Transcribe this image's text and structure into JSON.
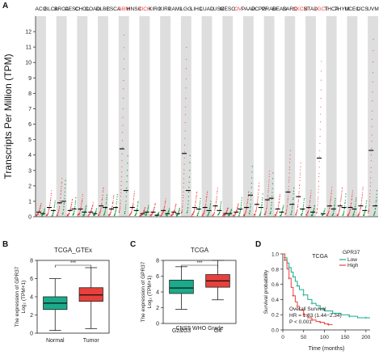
{
  "panels": {
    "a": "A",
    "b": "B",
    "c": "C",
    "d": "D"
  },
  "chart_data": [
    {
      "id": "A",
      "type": "scatter",
      "ylabel": "Transcripts Per Million (TPM)",
      "ylim": [
        0,
        13
      ],
      "yticks": [
        0,
        1,
        2,
        3,
        4,
        5,
        6,
        7,
        8,
        9,
        10,
        11,
        12
      ],
      "grid": false,
      "tumor_color": "#e8403c",
      "normal_color": "#1a9c45",
      "highlight_color": "#e8403c",
      "categories": [
        "ACC",
        "BLCA",
        "BRCA",
        "CESC",
        "CHOL",
        "COAD",
        "DLBC",
        "ESCA",
        "GBM",
        "HNSC",
        "KICH",
        "KIRC",
        "KIRP",
        "LAML",
        "LGG",
        "LIHC",
        "LUAD",
        "LUSC",
        "MESO",
        "OV",
        "PAAD",
        "PCPG",
        "PRAD",
        "READ",
        "SARC",
        "SKCM",
        "STAD",
        "TGCT",
        "THCA",
        "THYM",
        "UCEC",
        "UCS",
        "UVM"
      ],
      "highlighted": [
        "GBM",
        "KICH",
        "OV",
        "SKCM",
        "TGCT"
      ],
      "tumor_median": [
        0.3,
        0.6,
        0.9,
        0.4,
        0.5,
        0.3,
        0.7,
        0.5,
        4.4,
        0.6,
        0.2,
        0.3,
        0.4,
        0.3,
        4.1,
        0.6,
        0.6,
        0.7,
        0.2,
        0.3,
        0.6,
        0.8,
        1.1,
        0.5,
        1.6,
        1.3,
        0.6,
        3.8,
        0.7,
        0.7,
        0.6,
        0.7,
        4.3
      ],
      "normal_median": [
        0.2,
        0.4,
        1.0,
        0.5,
        0.3,
        0.2,
        0.6,
        0.6,
        1.7,
        0.4,
        0.3,
        0.1,
        0.2,
        0.2,
        1.7,
        0.5,
        0.4,
        0.4,
        0.2,
        0.5,
        1.4,
        0.6,
        1.2,
        0.3,
        0.8,
        0.5,
        0.3,
        0.2,
        0.5,
        0.6,
        0.5,
        0.4,
        0.7
      ]
    },
    {
      "id": "B",
      "type": "boxplot",
      "title": "TCGA_GTEx",
      "ylabel": [
        "The expression of GPR37",
        "Log₂ (TPM+1)"
      ],
      "categories": [
        "Normal",
        "Tumor"
      ],
      "ylim": [
        0,
        8
      ],
      "yticks": [
        0,
        2,
        4,
        6,
        8
      ],
      "significance": "***",
      "boxes": [
        {
          "name": "Normal",
          "color": "#1aab8a",
          "whisker_low": 0.3,
          "q1": 2.6,
          "median": 3.3,
          "q3": 4.0,
          "whisker_high": 6.0
        },
        {
          "name": "Tumor",
          "color": "#e8403c",
          "whisker_low": 0.5,
          "q1": 3.5,
          "median": 4.2,
          "q3": 5.0,
          "whisker_high": 7.2
        }
      ]
    },
    {
      "id": "C",
      "type": "boxplot",
      "title": "TCGA",
      "ylabel": [
        "The expression of GPR37",
        "Log₂ (TPM+1)"
      ],
      "xlabel": "CNS5 WHO Grade",
      "categories": [
        "G2&G3",
        "G4"
      ],
      "ylim": [
        0,
        8
      ],
      "yticks": [
        0,
        2,
        4,
        6,
        8
      ],
      "significance": "***",
      "boxes": [
        {
          "name": "G2&G3",
          "color": "#1aab8a",
          "whisker_low": 1.8,
          "q1": 3.8,
          "median": 4.5,
          "q3": 5.5,
          "whisker_high": 7.2
        },
        {
          "name": "G4",
          "color": "#e8403c",
          "whisker_low": 3.0,
          "q1": 4.6,
          "median": 5.4,
          "q3": 6.2,
          "whisker_high": 8.0
        }
      ]
    },
    {
      "id": "D",
      "type": "line",
      "title": "TCGA",
      "xlabel": "Time (months)",
      "ylabel": "Survival probability",
      "xlim": [
        0,
        210
      ],
      "ylim": [
        0,
        1.0
      ],
      "xticks": [
        0,
        50,
        100,
        150,
        200
      ],
      "yticks": [
        0.0,
        0.2,
        0.4,
        0.6,
        0.8,
        1.0
      ],
      "legend": {
        "title": "GPR37",
        "position": "top-right"
      },
      "annotations": [
        "Overall Survival",
        "HR = 1.83 (1.44−2.34)",
        "P < 0.001"
      ],
      "series": [
        {
          "name": "Low",
          "color": "#1aab8a",
          "x": [
            0,
            5,
            10,
            15,
            20,
            25,
            30,
            35,
            40,
            50,
            60,
            70,
            80,
            90,
            100,
            120,
            140,
            160,
            180,
            200,
            210
          ],
          "y": [
            1.0,
            0.95,
            0.88,
            0.82,
            0.76,
            0.7,
            0.64,
            0.58,
            0.53,
            0.46,
            0.4,
            0.35,
            0.32,
            0.28,
            0.25,
            0.22,
            0.2,
            0.18,
            0.16,
            0.16,
            0.16
          ]
        },
        {
          "name": "High",
          "color": "#e8403c",
          "x": [
            0,
            5,
            10,
            15,
            20,
            25,
            30,
            35,
            40,
            50,
            60,
            70,
            80,
            90,
            100,
            110,
            120
          ],
          "y": [
            1.0,
            0.92,
            0.8,
            0.68,
            0.56,
            0.45,
            0.37,
            0.31,
            0.26,
            0.2,
            0.16,
            0.13,
            0.11,
            0.1,
            0.08,
            0.07,
            0.07
          ]
        }
      ]
    }
  ]
}
